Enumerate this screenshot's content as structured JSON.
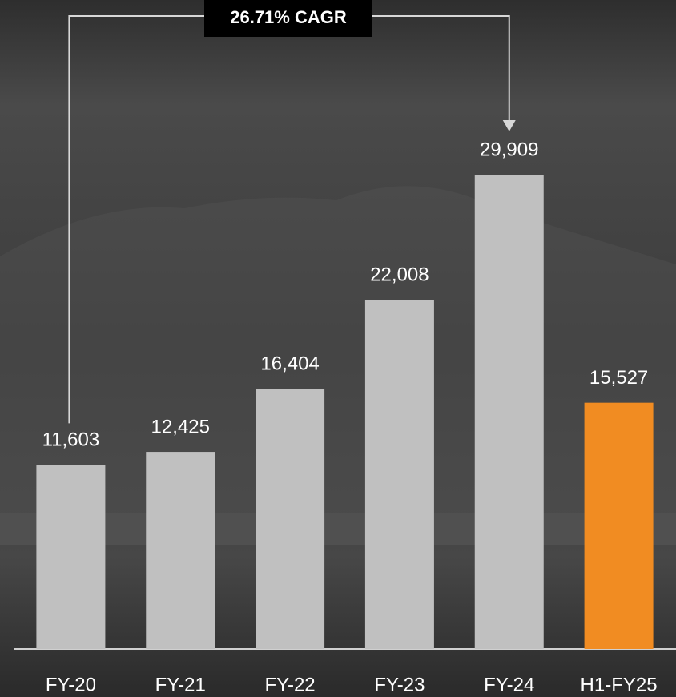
{
  "chart_data": {
    "type": "bar",
    "annotation": "26.71% CAGR",
    "categories": [
      "FY-20",
      "FY-21",
      "FY-22",
      "FY-23",
      "FY-24",
      "H1-FY25"
    ],
    "values": [
      11603,
      12425,
      16404,
      22008,
      29909,
      15527
    ],
    "value_labels": [
      "11,603",
      "12,425",
      "16,404",
      "22,008",
      "29,909",
      "15,527"
    ],
    "colors": [
      "#c0c0c0",
      "#c0c0c0",
      "#c0c0c0",
      "#c0c0c0",
      "#c0c0c0",
      "#f18c22"
    ]
  }
}
